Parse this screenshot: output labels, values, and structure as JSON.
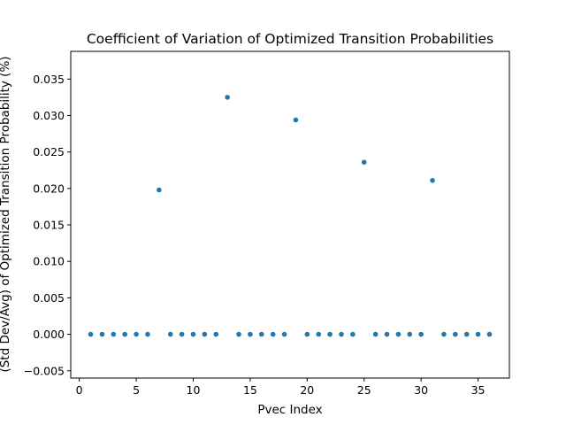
{
  "chart_data": {
    "type": "scatter",
    "title": "Coefficient of Variation of Optimized Transition Probabilities",
    "xlabel": "Pvec Index",
    "ylabel": "(Std Dev/Avg) of Optimized Transition Probability (%)",
    "xlim": [
      -0.75,
      37.75
    ],
    "ylim": [
      -0.006,
      0.0388
    ],
    "xticks": [
      0,
      5,
      10,
      15,
      20,
      25,
      30,
      35
    ],
    "xtick_labels": [
      "0",
      "5",
      "10",
      "15",
      "20",
      "25",
      "30",
      "35"
    ],
    "yticks": [
      -0.005,
      0.0,
      0.005,
      0.01,
      0.015,
      0.02,
      0.025,
      0.03,
      0.035
    ],
    "ytick_labels": [
      "−0.005",
      "0.000",
      "0.005",
      "0.010",
      "0.015",
      "0.020",
      "0.025",
      "0.030",
      "0.035"
    ],
    "grid": false,
    "legend": "none",
    "marker_color": "#1f77b4",
    "series": [
      {
        "x": [
          1,
          2,
          3,
          4,
          5,
          6,
          7,
          8,
          9,
          10,
          11,
          12,
          13,
          14,
          15,
          16,
          17,
          18,
          19,
          20,
          21,
          22,
          23,
          24,
          25,
          26,
          27,
          28,
          29,
          30,
          31,
          32,
          33,
          34,
          35,
          36
        ],
        "y": [
          0,
          0,
          0,
          0,
          0,
          0,
          0.0198,
          0,
          0,
          0,
          0,
          0,
          0.0325,
          0,
          0,
          0,
          0,
          0,
          0.0294,
          0,
          0,
          0,
          0,
          0,
          0.0236,
          0,
          0,
          0,
          0,
          0,
          0.0211,
          0,
          0,
          0,
          0,
          0
        ]
      }
    ]
  }
}
